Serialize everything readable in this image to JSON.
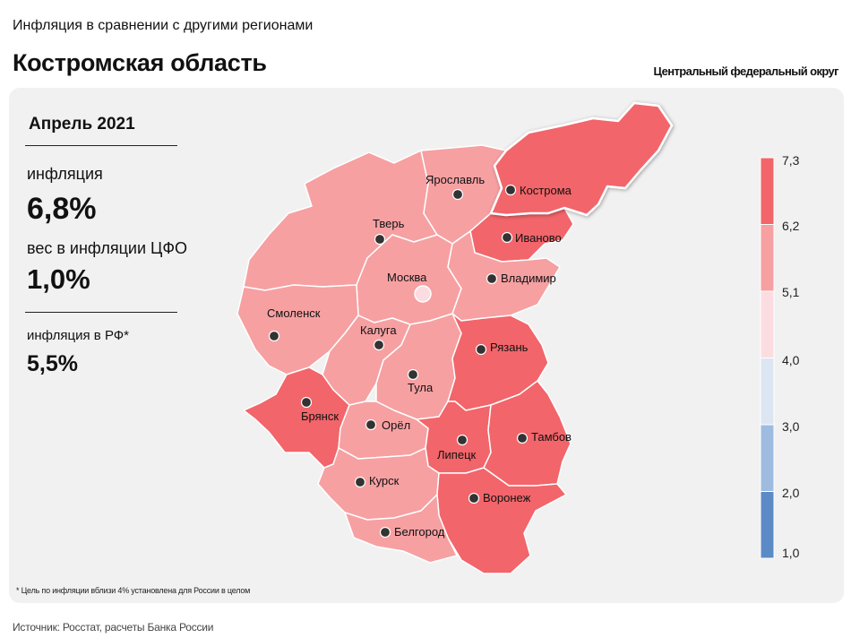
{
  "header": {
    "suptitle": "Инфляция в сравнении с другими регионами",
    "title": "Костромская область",
    "district": "Центральный федеральный округ"
  },
  "summary": {
    "period": "Апрель 2021",
    "inflation_label": "инфляция",
    "inflation_value": "6,8%",
    "weight_label": "вес в инфляции ЦФО",
    "weight_value": "1,0%",
    "rf_label": "инфляция в РФ*",
    "rf_value": "5,5%"
  },
  "footnote": "* Цель по инфляции вблизи 4% установлена для России в целом",
  "source": "Источник: Росстат, расчеты Банка России",
  "map": {
    "regions": [
      {
        "name": "Кострома",
        "bin": "6,2–7,3",
        "color": "#f2656a"
      },
      {
        "name": "Ярославль",
        "bin": "5,1–6,2",
        "color": "#f6a0a2"
      },
      {
        "name": "Тверь",
        "bin": "5,1–6,2",
        "color": "#f6a0a2"
      },
      {
        "name": "Иваново",
        "bin": "6,2–7,3",
        "color": "#f2656a"
      },
      {
        "name": "Москва",
        "bin": "5,1–6,2",
        "color": "#f6a0a2"
      },
      {
        "name": "Владимир",
        "bin": "5,1–6,2",
        "color": "#f6a0a2"
      },
      {
        "name": "Смоленск",
        "bin": "5,1–6,2",
        "color": "#f6a0a2"
      },
      {
        "name": "Калуга",
        "bin": "5,1–6,2",
        "color": "#f6a0a2"
      },
      {
        "name": "Тула",
        "bin": "5,1–6,2",
        "color": "#f6a0a2"
      },
      {
        "name": "Рязань",
        "bin": "6,2–7,3",
        "color": "#f2656a"
      },
      {
        "name": "Брянск",
        "bin": "6,2–7,3",
        "color": "#f2656a"
      },
      {
        "name": "Орёл",
        "bin": "5,1–6,2",
        "color": "#f6a0a2"
      },
      {
        "name": "Липецк",
        "bin": "6,2–7,3",
        "color": "#f2656a"
      },
      {
        "name": "Тамбов",
        "bin": "6,2–7,3",
        "color": "#f2656a"
      },
      {
        "name": "Курск",
        "bin": "5,1–6,2",
        "color": "#f6a0a2"
      },
      {
        "name": "Воронеж",
        "bin": "6,2–7,3",
        "color": "#f2656a"
      },
      {
        "name": "Белгород",
        "bin": "5,1–6,2",
        "color": "#f6a0a2"
      }
    ],
    "highlighted_region": "Кострома"
  },
  "legend": {
    "ticks": [
      "7,3",
      "6,2",
      "5,1",
      "4,0",
      "3,0",
      "2,0",
      "1,0"
    ],
    "colors": [
      "#f2656a",
      "#f6a0a2",
      "#fbdde1",
      "#dce6f3",
      "#9fbbe0",
      "#5b8ac6"
    ]
  }
}
